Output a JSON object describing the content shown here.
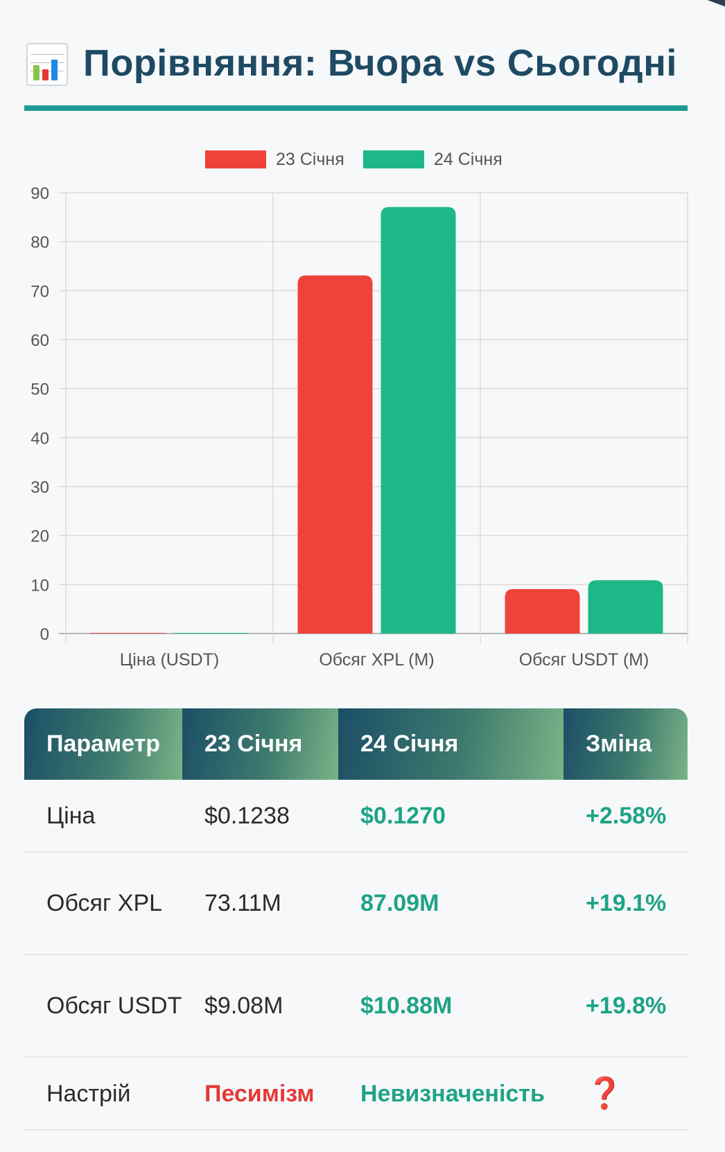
{
  "header": {
    "icon": "bar-chart-icon",
    "title": "Порівняння: Вчора vs Сьогодні"
  },
  "colors": {
    "accent_line": "#1f9a92",
    "series_a": "#ef4339",
    "series_b": "#1db887",
    "positive": "#1fa386",
    "negative": "#e53935",
    "title": "#1e4a63"
  },
  "chart_data": {
    "type": "bar",
    "categories": [
      "Ціна (USDT)",
      "Обсяг XPL (M)",
      "Обсяг USDT (M)"
    ],
    "series": [
      {
        "name": "23 Січня",
        "values": [
          0.1238,
          73.11,
          9.08
        ]
      },
      {
        "name": "24 Січня",
        "values": [
          0.127,
          87.09,
          10.88
        ]
      }
    ],
    "ylim": [
      0,
      90
    ],
    "yticks": [
      "0",
      "10",
      "20",
      "30",
      "40",
      "50",
      "60",
      "70",
      "80",
      "90"
    ],
    "grid": true,
    "legend": "top-center"
  },
  "table": {
    "headers": [
      "Параметр",
      "23 Січня",
      "24 Січня",
      "Зміна"
    ],
    "rows": [
      {
        "param": "Ціна",
        "d23": "$0.1238",
        "d24": "$0.1270",
        "change": "+2.58%"
      },
      {
        "param": "Обсяг XPL",
        "d23": "73.11M",
        "d24": "87.09M",
        "change": "+19.1%"
      },
      {
        "param": "Обсяг USDT",
        "d23": "$9.08M",
        "d24": "$10.88M",
        "change": "+19.8%"
      },
      {
        "param": "Настрій",
        "d23": "Песимізм",
        "d24": "Невизначеність",
        "change": "❓"
      }
    ]
  }
}
